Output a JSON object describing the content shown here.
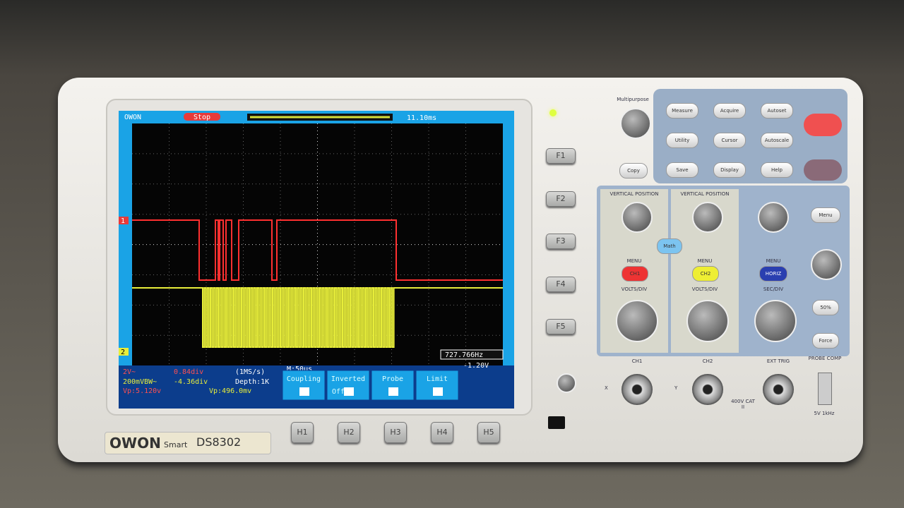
{
  "brand": {
    "logo": "OWON",
    "series": "Smart",
    "model": "DS8302"
  },
  "screen": {
    "logo": "OWON",
    "status": "Stop",
    "trigger_time": "11.10ms",
    "frequency": "727.766Hz",
    "ch1_scale": "2V~",
    "ch1_offset": "0.84div",
    "sample_rate": "(1MS/s)",
    "timebase": "M:50us",
    "depth": "Depth:1K",
    "ch2_scale": "200mVBW~",
    "ch2_offset": "-4.36div",
    "ch1_vp": "Vp:5.120v",
    "ch2_vp": "Vp:496.0mv",
    "trigger_level": "-1.20V",
    "ch1_marker": "1",
    "ch2_marker": "2",
    "menu": [
      {
        "label": "Coupling"
      },
      {
        "label": "Inverted",
        "value": "Off"
      },
      {
        "label": "Probe"
      },
      {
        "label": "Limit"
      }
    ]
  },
  "softkeys": [
    "F1",
    "F2",
    "F3",
    "F4",
    "F5"
  ],
  "hkeys": [
    "H1",
    "H2",
    "H3",
    "H4",
    "H5"
  ],
  "multipurpose": "Multipurpose",
  "copy": "Copy",
  "function_buttons": [
    "Measure",
    "Acquire",
    "Autoset",
    "Utility",
    "Cursor",
    "Autoscale",
    "Save",
    "Display",
    "Help"
  ],
  "vertical": {
    "position1": "VERTICAL POSITION",
    "position2": "VERTICAL POSITION",
    "math": "Math",
    "menu1": "MENU",
    "menu2": "MENU",
    "ch1": "CH1",
    "ch2": "CH2",
    "volts1": "VOLTS/DIV",
    "volts2": "VOLTS/DIV"
  },
  "horizontal": {
    "menu": "MENU",
    "horiz": "HORIZ",
    "sec": "SEC/DIV"
  },
  "trigger": {
    "menu": "Menu",
    "half": "50%",
    "force": "Force"
  },
  "inputs": {
    "ch1": "CH1",
    "ch2": "CH2",
    "ext": "EXT TRIG",
    "probe_comp": "PROBE COMP",
    "x": "X",
    "y": "Y",
    "rating": "400V CAT II",
    "comp_value": "5V 1kHz"
  }
}
